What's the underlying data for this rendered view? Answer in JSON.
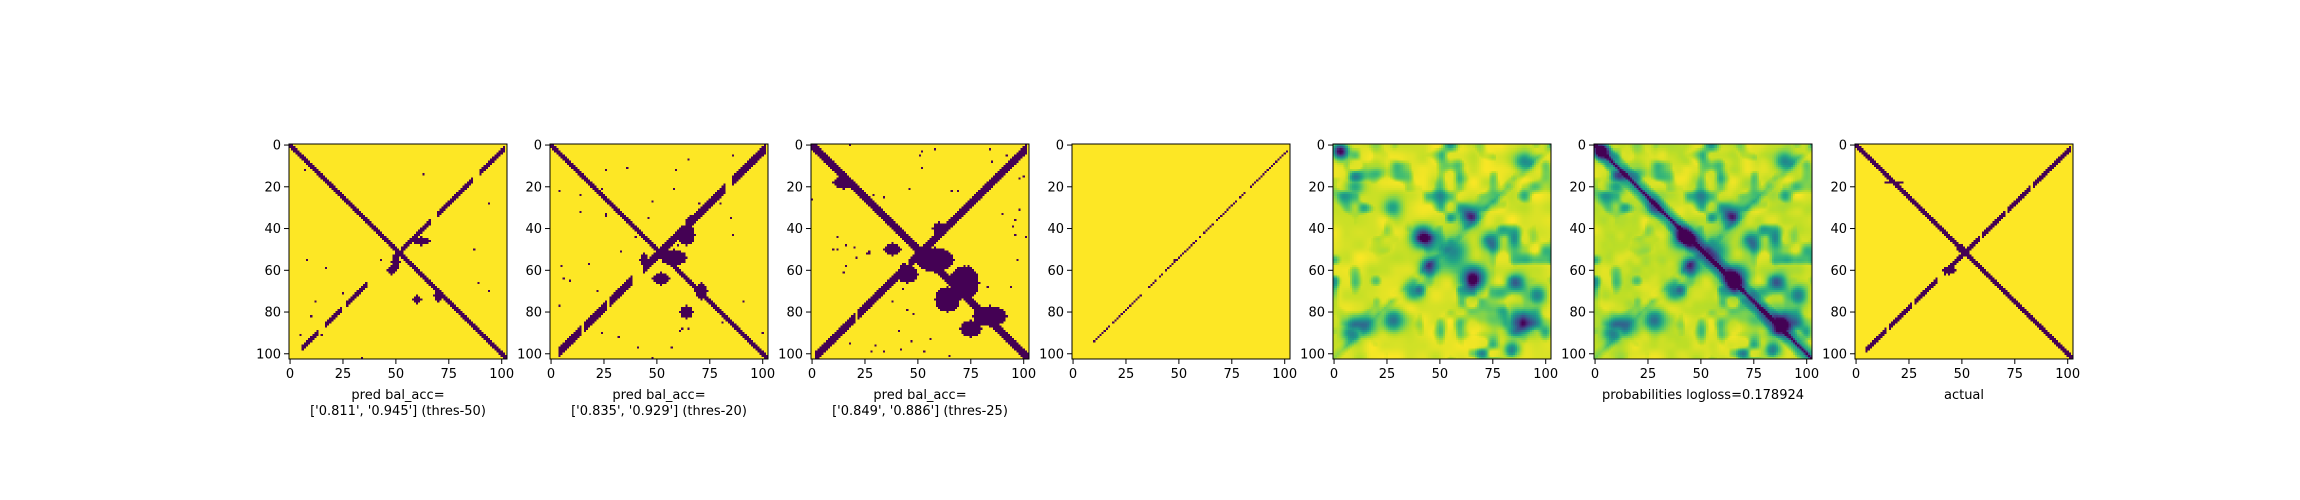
{
  "chart_data": [
    {
      "type": "heatmap",
      "title": "",
      "xlabel": "pred bal_acc=\n['0.811', '0.945'] (thres-50)",
      "ylabel": "",
      "xticks": [
        "0",
        "25",
        "50",
        "75",
        "100"
      ],
      "yticks": [
        "0",
        "20",
        "40",
        "60",
        "80",
        "100"
      ],
      "xlim": [
        -0.5,
        102.5
      ],
      "ylim": [
        102.5,
        -0.5
      ],
      "grid": false,
      "colormap": "viridis",
      "colors": {
        "low": "#440154",
        "high": "#fde725"
      },
      "matrix_size": 103,
      "value_range": [
        0,
        1
      ]
    },
    {
      "type": "heatmap",
      "title": "",
      "xlabel": "pred bal_acc=\n['0.835', '0.929'] (thres-20)",
      "ylabel": "",
      "xticks": [
        "0",
        "25",
        "50",
        "75",
        "100"
      ],
      "yticks": [
        "0",
        "20",
        "40",
        "60",
        "80",
        "100"
      ],
      "xlim": [
        -0.5,
        102.5
      ],
      "ylim": [
        102.5,
        -0.5
      ],
      "grid": false,
      "colormap": "viridis",
      "colors": {
        "low": "#440154",
        "high": "#fde725"
      },
      "matrix_size": 103,
      "value_range": [
        0,
        1
      ]
    },
    {
      "type": "heatmap",
      "title": "",
      "xlabel": "pred bal_acc=\n['0.849', '0.886'] (thres-25)",
      "ylabel": "",
      "xticks": [
        "0",
        "25",
        "50",
        "75",
        "100"
      ],
      "yticks": [
        "0",
        "20",
        "40",
        "60",
        "80",
        "100"
      ],
      "xlim": [
        -0.5,
        102.5
      ],
      "ylim": [
        102.5,
        -0.5
      ],
      "grid": false,
      "colormap": "viridis",
      "colors": {
        "low": "#440154",
        "high": "#fde725"
      },
      "matrix_size": 103,
      "value_range": [
        0,
        1
      ]
    },
    {
      "type": "heatmap",
      "title": "",
      "xlabel": "",
      "ylabel": "",
      "xticks": [
        "0",
        "25",
        "50",
        "75",
        "100"
      ],
      "yticks": [
        "0",
        "20",
        "40",
        "60",
        "80",
        "100"
      ],
      "xlim": [
        -0.5,
        102.5
      ],
      "ylim": [
        102.5,
        -0.5
      ],
      "grid": false,
      "colormap": "viridis",
      "colors": {
        "low": "#440154",
        "high": "#fde725"
      },
      "matrix_size": 103,
      "value_range": [
        0,
        1
      ]
    },
    {
      "type": "heatmap",
      "title": "",
      "xlabel": "",
      "ylabel": "",
      "xticks": [
        "0",
        "25",
        "50",
        "75",
        "100"
      ],
      "yticks": [
        "0",
        "20",
        "40",
        "60",
        "80",
        "100"
      ],
      "xlim": [
        -0.5,
        102.5
      ],
      "ylim": [
        102.5,
        -0.5
      ],
      "grid": false,
      "colormap": "viridis",
      "colors": {
        "low": "#440154",
        "high": "#fde725"
      },
      "matrix_size": 103,
      "value_range": [
        0,
        1
      ]
    },
    {
      "type": "heatmap",
      "title": "",
      "xlabel": "probabilities logloss=0.178924",
      "ylabel": "",
      "xticks": [
        "0",
        "25",
        "50",
        "75",
        "100"
      ],
      "yticks": [
        "0",
        "20",
        "40",
        "60",
        "80",
        "100"
      ],
      "xlim": [
        -0.5,
        102.5
      ],
      "ylim": [
        102.5,
        -0.5
      ],
      "grid": false,
      "colormap": "viridis",
      "colors": {
        "low": "#440154",
        "high": "#fde725"
      },
      "matrix_size": 103,
      "value_range": [
        0,
        1
      ]
    },
    {
      "type": "heatmap",
      "title": "",
      "xlabel": "actual",
      "ylabel": "",
      "xticks": [
        "0",
        "25",
        "50",
        "75",
        "100"
      ],
      "yticks": [
        "0",
        "20",
        "40",
        "60",
        "80",
        "100"
      ],
      "xlim": [
        -0.5,
        102.5
      ],
      "ylim": [
        102.5,
        -0.5
      ],
      "grid": false,
      "colormap": "viridis",
      "colors": {
        "low": "#440154",
        "high": "#fde725"
      },
      "matrix_size": 103,
      "value_range": [
        0,
        1
      ]
    }
  ]
}
